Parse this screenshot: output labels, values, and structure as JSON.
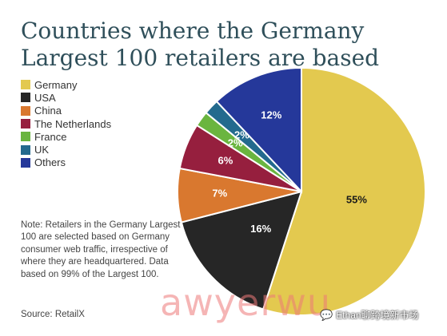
{
  "chart_data": {
    "type": "pie",
    "title": "Countries where the Germany Largest 100 retailers are based",
    "slices": [
      {
        "label": "Germany",
        "value": 55,
        "color": "#e3c94f",
        "text": "55%",
        "text_color": "#1a1a1a"
      },
      {
        "label": "USA",
        "value": 16,
        "color": "#262626",
        "text": "16%",
        "text_color": "#ffffff"
      },
      {
        "label": "China",
        "value": 7,
        "color": "#d9782f",
        "text": "7%",
        "text_color": "#ffffff"
      },
      {
        "label": "The Netherlands",
        "value": 6,
        "color": "#961f3e",
        "text": "6%",
        "text_color": "#ffffff"
      },
      {
        "label": "France",
        "value": 2,
        "color": "#6ab53f",
        "text": "2%",
        "text_color": "#ffffff"
      },
      {
        "label": "UK",
        "value": 2,
        "color": "#236a8e",
        "text": "2%",
        "text_color": "#ffffff"
      },
      {
        "label": "Others",
        "value": 12,
        "color": "#25389a",
        "text": "12%",
        "text_color": "#ffffff"
      }
    ],
    "legend_position": "top-left"
  },
  "note": "Note: Retailers in the Germany Largest 100 are selected based on Germany consumer web traffic, irrespective of where they are headquartered. Data based on 99% of the Largest 100.",
  "source": "Source: RetailX",
  "watermark": {
    "text": "awyerwu",
    "color": "#ec7878"
  },
  "wechat": {
    "icon": "wechat-icon",
    "text": "Ethan聊跨境新市场"
  }
}
